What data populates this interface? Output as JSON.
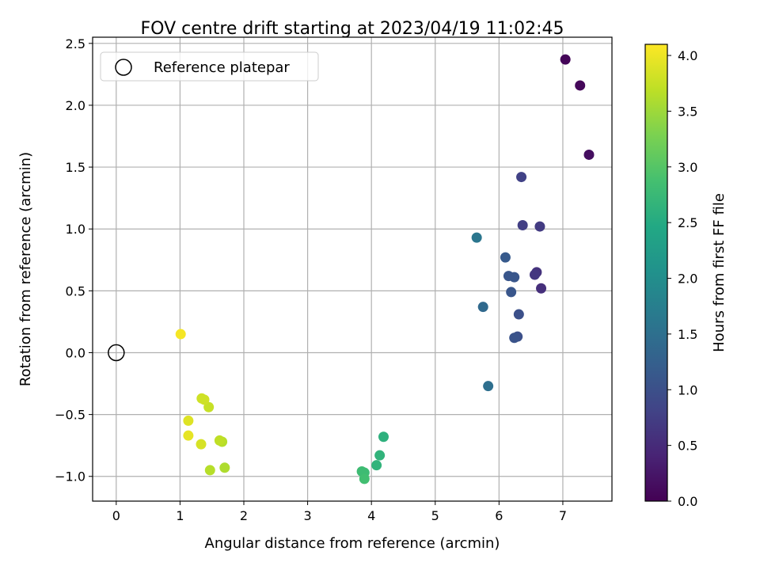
{
  "chart_data": {
    "type": "scatter",
    "title": "FOV centre drift starting at 2023/04/19 11:02:45",
    "xlabel": "Angular distance from reference (arcmin)",
    "ylabel": "Rotation from reference (arcmin)",
    "colorbar_label": "Hours from first FF file",
    "xlim": [
      -0.37,
      7.77
    ],
    "ylim": [
      -1.2,
      2.55
    ],
    "clim": [
      0.0,
      4.1
    ],
    "xticks": [
      "0",
      "1",
      "2",
      "3",
      "4",
      "5",
      "6",
      "7"
    ],
    "xtick_values": [
      0,
      1,
      2,
      3,
      4,
      5,
      6,
      7
    ],
    "yticks": [
      "2.5",
      "2.0",
      "1.5",
      "1.0",
      "0.5",
      "0.0",
      "−0.5",
      "−1.0"
    ],
    "ytick_values": [
      2.5,
      2.0,
      1.5,
      1.0,
      0.5,
      0.0,
      -0.5,
      -1.0
    ],
    "cticks": [
      "4.0",
      "3.5",
      "3.0",
      "2.5",
      "2.0",
      "1.5",
      "1.0",
      "0.5",
      "0.0"
    ],
    "ctick_values": [
      4.0,
      3.5,
      3.0,
      2.5,
      2.0,
      1.5,
      1.0,
      0.5,
      0.0
    ],
    "grid": true,
    "colormap": "viridis",
    "legend": {
      "placement": "top-left",
      "label": "Reference platepar"
    },
    "reference": {
      "x": 0.0,
      "y": 0.0
    },
    "points": [
      {
        "x": 7.04,
        "y": 2.37,
        "hours": 0.05
      },
      {
        "x": 7.27,
        "y": 2.16,
        "hours": 0.08
      },
      {
        "x": 7.41,
        "y": 1.6,
        "hours": 0.15
      },
      {
        "x": 6.66,
        "y": 0.52,
        "hours": 0.55
      },
      {
        "x": 6.59,
        "y": 0.65,
        "hours": 0.6
      },
      {
        "x": 6.56,
        "y": 0.63,
        "hours": 0.65
      },
      {
        "x": 6.64,
        "y": 1.02,
        "hours": 0.7
      },
      {
        "x": 6.37,
        "y": 1.03,
        "hours": 0.75
      },
      {
        "x": 6.35,
        "y": 1.42,
        "hours": 0.8
      },
      {
        "x": 6.31,
        "y": 0.31,
        "hours": 1.0
      },
      {
        "x": 6.29,
        "y": 0.13,
        "hours": 1.0
      },
      {
        "x": 6.24,
        "y": 0.12,
        "hours": 1.05
      },
      {
        "x": 6.24,
        "y": 0.61,
        "hours": 1.1
      },
      {
        "x": 6.19,
        "y": 0.49,
        "hours": 1.1
      },
      {
        "x": 6.15,
        "y": 0.62,
        "hours": 1.1
      },
      {
        "x": 6.1,
        "y": 0.77,
        "hours": 1.15
      },
      {
        "x": 5.75,
        "y": 0.37,
        "hours": 1.4
      },
      {
        "x": 5.83,
        "y": -0.27,
        "hours": 1.5
      },
      {
        "x": 5.65,
        "y": 0.93,
        "hours": 1.6
      },
      {
        "x": 4.19,
        "y": -0.68,
        "hours": 2.6
      },
      {
        "x": 4.13,
        "y": -0.83,
        "hours": 2.65
      },
      {
        "x": 4.08,
        "y": -0.91,
        "hours": 2.65
      },
      {
        "x": 3.85,
        "y": -0.96,
        "hours": 2.8
      },
      {
        "x": 3.89,
        "y": -0.97,
        "hours": 2.8
      },
      {
        "x": 3.89,
        "y": -1.02,
        "hours": 2.85
      },
      {
        "x": 1.7,
        "y": -0.93,
        "hours": 3.6
      },
      {
        "x": 1.47,
        "y": -0.95,
        "hours": 3.65
      },
      {
        "x": 1.66,
        "y": -0.72,
        "hours": 3.65
      },
      {
        "x": 1.62,
        "y": -0.71,
        "hours": 3.7
      },
      {
        "x": 1.45,
        "y": -0.44,
        "hours": 3.75
      },
      {
        "x": 1.38,
        "y": -0.38,
        "hours": 3.8
      },
      {
        "x": 1.34,
        "y": -0.37,
        "hours": 3.8
      },
      {
        "x": 1.33,
        "y": -0.74,
        "hours": 3.85
      },
      {
        "x": 1.13,
        "y": -0.55,
        "hours": 3.9
      },
      {
        "x": 1.13,
        "y": -0.67,
        "hours": 3.95
      },
      {
        "x": 1.01,
        "y": 0.15,
        "hours": 4.05
      }
    ]
  }
}
